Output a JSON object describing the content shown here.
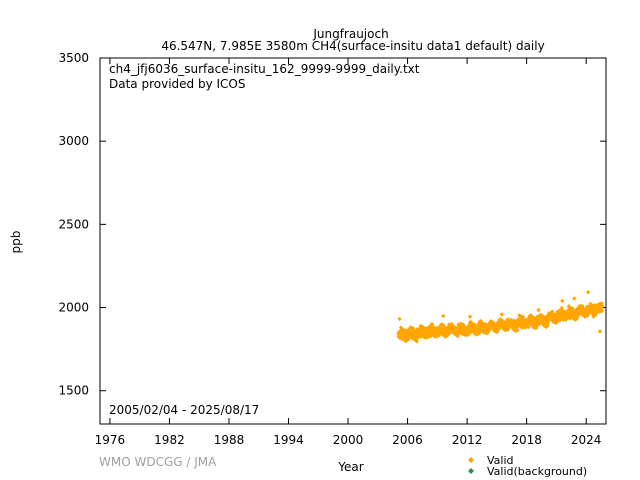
{
  "chart_data": {
    "type": "scatter",
    "title": "Jungfraujoch",
    "subtitle": "46.547N, 7.985E 3580m    CH4(surface-insitu data1 default) daily",
    "file_label": "ch4_jfj6036_surface-insitu_162_9999-9999_daily.txt",
    "provider": "Data provided by ICOS",
    "date_range": "2005/02/04 - 2025/08/17",
    "xlabel": "Year",
    "ylabel": "ppb",
    "xlim": [
      1975,
      2026
    ],
    "ylim": [
      1300,
      3500
    ],
    "xticks": [
      1976,
      1982,
      1988,
      1994,
      2000,
      2006,
      2012,
      2018,
      2024
    ],
    "yticks": [
      1500,
      2000,
      2500,
      3000,
      3500
    ],
    "grid": false,
    "legend_position": "bottom-right",
    "series": [
      {
        "name": "Valid",
        "color": "#ffa500",
        "marker": "diamond",
        "trend": {
          "x": [
            2005.1,
            2006,
            2008,
            2010,
            2012,
            2014,
            2016,
            2018,
            2020,
            2022,
            2024,
            2025.6
          ],
          "y": [
            1835,
            1840,
            1852,
            1860,
            1868,
            1882,
            1896,
            1910,
            1928,
            1958,
            1980,
            1995
          ]
        },
        "spread": 28,
        "outliers": [
          {
            "x": 2005.2,
            "y": 1932
          },
          {
            "x": 2009.6,
            "y": 1950
          },
          {
            "x": 2012.3,
            "y": 1945
          },
          {
            "x": 2015.5,
            "y": 1958
          },
          {
            "x": 2019.2,
            "y": 1985
          },
          {
            "x": 2021.6,
            "y": 2040
          },
          {
            "x": 2022.8,
            "y": 2055
          },
          {
            "x": 2024.2,
            "y": 2092
          },
          {
            "x": 2025.4,
            "y": 1856
          }
        ]
      },
      {
        "name": "Valid(background)",
        "color": "#2e8b57",
        "marker": "diamond",
        "trend": {
          "x": [],
          "y": []
        },
        "outliers": []
      }
    ]
  },
  "credit": "WMO WDCGG / JMA"
}
